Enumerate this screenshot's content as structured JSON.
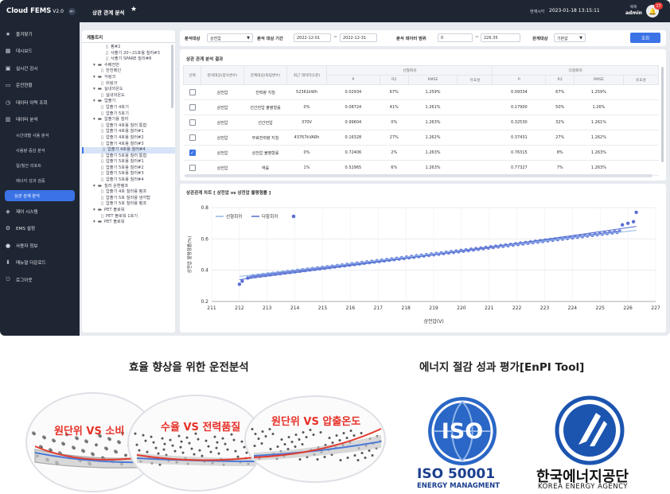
{
  "app": {
    "brand": "Cloud FEMS",
    "version": "V2.0",
    "page_title": "상관 관계 분석",
    "time_label": "현재시각",
    "time_value": "2023-01-18 13:15:11",
    "user_label": "배재",
    "user_name": "admin",
    "notification_count": "17"
  },
  "sidebar": {
    "items": [
      {
        "label": "즐겨찾기",
        "icon": "star-icon"
      },
      {
        "label": "대시보드",
        "icon": "grid-icon"
      },
      {
        "label": "실시간 감시",
        "icon": "monitor-icon"
      },
      {
        "label": "운전현황",
        "icon": "screen-icon"
      },
      {
        "label": "데이터 이력 조회",
        "icon": "clock-icon"
      },
      {
        "label": "데이터 분석",
        "icon": "chart-icon"
      }
    ],
    "sub_items": [
      "시간대별 사용 분석",
      "사용량 증감 분석",
      "일/월간 리포트",
      "에너지 성과 검증",
      "상관 관계 분석"
    ],
    "items_after": [
      {
        "label": "제어 시스템",
        "icon": "control-icon"
      },
      {
        "label": "EMS 설정",
        "icon": "gear-icon"
      },
      {
        "label": "사용자 정보",
        "icon": "user-icon"
      },
      {
        "label": "매뉴얼 다운로드",
        "icon": "download-icon"
      },
      {
        "label": "로그아웃",
        "icon": "logout-icon"
      }
    ]
  },
  "tree": {
    "title": "계통트리",
    "nodes": [
      {
        "label": "펌#2",
        "level": 3,
        "type": "file"
      },
      {
        "label": "사출기 20~21호용 칠러#3",
        "level": 3,
        "type": "file"
      },
      {
        "label": "사출기 SPARE 칠러#8",
        "level": 3,
        "type": "file"
      },
      {
        "label": "수배전반",
        "level": 1,
        "type": "folder"
      },
      {
        "label": "한전메인",
        "level": 2,
        "type": "file"
      },
      {
        "label": "식링크",
        "level": 1,
        "type": "folder"
      },
      {
        "label": "쉬링크",
        "level": 2,
        "type": "file"
      },
      {
        "label": "실내외온도",
        "level": 1,
        "type": "folder"
      },
      {
        "label": "실내외온도",
        "level": 2,
        "type": "file"
      },
      {
        "label": "압출기",
        "level": 1,
        "type": "folder"
      },
      {
        "label": "압출기 4호기",
        "level": 2,
        "type": "file"
      },
      {
        "label": "압출기 5호기",
        "level": 2,
        "type": "file"
      },
      {
        "label": "압출기용 칠러",
        "level": 1,
        "type": "folder"
      },
      {
        "label": "압출기 4호용 칠러 통합",
        "level": 2,
        "type": "file"
      },
      {
        "label": "압출기 4호용 칠러#1",
        "level": 2,
        "type": "file"
      },
      {
        "label": "압출기 4호용 칠러#2",
        "level": 2,
        "type": "file"
      },
      {
        "label": "압출기 4호용 칠러#3",
        "level": 2,
        "type": "file"
      },
      {
        "label": "압출기 4호용 칠러#4",
        "level": 2,
        "type": "file",
        "selected": true
      },
      {
        "label": "압출기 5호용 칠러 통합",
        "level": 2,
        "type": "file"
      },
      {
        "label": "압출기 5호용 칠러#1",
        "level": 2,
        "type": "file"
      },
      {
        "label": "압출기 5호용 칠러#2",
        "level": 2,
        "type": "file"
      },
      {
        "label": "압출기 5호용 칠러#3",
        "level": 2,
        "type": "file"
      },
      {
        "label": "압출기 5호용 칠러#4",
        "level": 2,
        "type": "file"
      },
      {
        "label": "칠러 순환펌프",
        "level": 1,
        "type": "folder"
      },
      {
        "label": "압출기 4호 칠러용 펌프",
        "level": 2,
        "type": "file"
      },
      {
        "label": "압출기 5호 칠러용 냉각탑",
        "level": 2,
        "type": "file"
      },
      {
        "label": "압출기 5호 칠러용 펌프",
        "level": 2,
        "type": "file"
      },
      {
        "label": "PET 블로워",
        "level": 1,
        "type": "folder"
      },
      {
        "label": "PET 블로워 1호기",
        "level": 2,
        "type": "file"
      },
      {
        "label": "PET 블로워",
        "level": 1,
        "type": "folder"
      }
    ]
  },
  "filter": {
    "target_label": "분석대상",
    "target_value": "상전압",
    "period_label": "분석 대상 기간",
    "date_from": "2022-12-01",
    "date_to": "2022-12-31",
    "range_label": "분석 데이터 범위",
    "range_from": "0",
    "range_to": "226.35",
    "relation_label": "관계대상",
    "relation_value": "기본값",
    "search_button": "조회"
  },
  "results": {
    "title": "상관 관계 분석 결과",
    "headers": {
      "select": "선택",
      "dep": "분석대상(종속변수)",
      "indep": "관계대상(독립변수)",
      "max": "최근 데이터(1분)",
      "linear": "선형회귀",
      "multi": "다항회귀",
      "p": "P",
      "r2": "R2",
      "rmse": "RMSE",
      "sig": "유효성"
    },
    "rows": [
      {
        "checked": false,
        "dep": "상전압",
        "indep": "전력량 지침",
        "max": "52361kWh",
        "lp": "0.02934",
        "lr2": "67%",
        "lrmse": "1.259%",
        "mp": "0.09334",
        "mr2": "67%",
        "mrmse": "1.259%"
      },
      {
        "checked": false,
        "dep": "상전압",
        "indep": "선간전압 불평형률",
        "max": "0%",
        "lp": "0.08724",
        "lr2": "41%",
        "lrmse": "1.261%",
        "mp": "0.17900",
        "mr2": "50%",
        "mrmse": "1.26%"
      },
      {
        "checked": false,
        "dep": "상전압",
        "indep": "선간전압",
        "max": "370V",
        "lp": "0.99604",
        "lr2": "0%",
        "lrmse": "1.263%",
        "mp": "0.32530",
        "mr2": "32%",
        "mrmse": "1.261%"
      },
      {
        "checked": false,
        "dep": "상전압",
        "indep": "무효전력량 지침",
        "max": "43767kVARh",
        "lp": "0.16328",
        "lr2": "27%",
        "lrmse": "1.262%",
        "mp": "0.37431",
        "mr2": "27%",
        "mrmse": "1.262%"
      },
      {
        "checked": true,
        "dep": "상전압",
        "indep": "상전압 불평형률",
        "max": "0%",
        "lp": "0.72406",
        "lr2": "2%",
        "lrmse": "1.263%",
        "mp": "0.76315",
        "mr2": "8%",
        "mrmse": "1.263%"
      },
      {
        "checked": false,
        "dep": "상전압",
        "indep": "역률",
        "max": "1%",
        "lp": "0.52965",
        "lr2": "6%",
        "lrmse": "1.263%",
        "mp": "0.77327",
        "mr2": "7%",
        "mrmse": "1.263%"
      }
    ]
  },
  "chart_data": {
    "type": "scatter",
    "title": "상관관계 차트 [ 상전압 vs 상전압 불평형률 ]",
    "xlabel": "상전압(V)",
    "ylabel": "상전압 불평형률(%)",
    "xlim": [
      211,
      227
    ],
    "ylim": [
      0.2,
      0.8
    ],
    "xticks": [
      211,
      212,
      213,
      214,
      215,
      216,
      217,
      218,
      219,
      220,
      221,
      222,
      223,
      224,
      225,
      226,
      227
    ],
    "yticks": [
      0.2,
      0.4,
      0.6,
      0.8
    ],
    "legend": [
      "선형회귀",
      "다항회귀"
    ],
    "legend_position": "top-left",
    "colors": {
      "points": "#5b6fd6",
      "linear": "#8fb8e8",
      "poly": "#4f6fd1"
    },
    "x_start": 212,
    "x_end": 226.3,
    "points_summary": {
      "y_at_start": 0.35,
      "y_at_end": 0.66
    },
    "outliers": [
      {
        "x": 212.0,
        "y": 0.31
      },
      {
        "x": 212.1,
        "y": 0.33
      },
      {
        "x": 212.3,
        "y": 0.35
      },
      {
        "x": 225.8,
        "y": 0.69
      },
      {
        "x": 226.0,
        "y": 0.7
      },
      {
        "x": 226.2,
        "y": 0.71
      },
      {
        "x": 226.3,
        "y": 0.77
      }
    ]
  },
  "marketing": {
    "left_caption": "효율 향상을 위한 운전분석",
    "right_caption": "에너지 절감 성과 평가[EnPI Tool]",
    "bubbles": [
      "원단위 VS 소비",
      "수율 VS 전력품질",
      "원단위 VS 압출온도"
    ],
    "iso_logo": "ISO",
    "iso_number": "ISO 50001",
    "iso_sub": "ENERGY MANAGMENT",
    "kea_name": "한국에너지공단",
    "kea_sub": "KOREA ENERGY AGENCY"
  }
}
